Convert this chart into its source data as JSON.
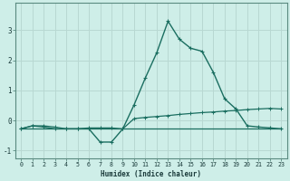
{
  "xlabel": "Humidex (Indice chaleur)",
  "background_color": "#ceeee8",
  "grid_color": "#b8d8d2",
  "line_color": "#1a6e60",
  "x_values": [
    0,
    1,
    2,
    3,
    4,
    5,
    6,
    7,
    8,
    9,
    10,
    11,
    12,
    13,
    14,
    15,
    16,
    17,
    18,
    19,
    20,
    21,
    22,
    23
  ],
  "line1_y": [
    -0.28,
    -0.18,
    -0.22,
    -0.28,
    -0.28,
    -0.28,
    -0.28,
    -0.72,
    -0.72,
    -0.28,
    0.52,
    1.42,
    2.25,
    3.3,
    2.7,
    2.4,
    2.3,
    1.6,
    0.72,
    0.38,
    -0.18,
    -0.22,
    -0.25,
    -0.28
  ],
  "line2_y": [
    -0.28,
    -0.18,
    -0.18,
    -0.22,
    -0.28,
    -0.28,
    -0.25,
    -0.25,
    -0.25,
    -0.28,
    0.06,
    0.1,
    0.13,
    0.16,
    0.2,
    0.23,
    0.26,
    0.28,
    0.31,
    0.33,
    0.36,
    0.38,
    0.4,
    0.38
  ],
  "line3_y": [
    -0.28,
    -0.28,
    -0.28,
    -0.28,
    -0.28,
    -0.28,
    -0.28,
    -0.28,
    -0.28,
    -0.28,
    -0.28,
    -0.28,
    -0.28,
    -0.28,
    -0.28,
    -0.28,
    -0.28,
    -0.28,
    -0.28,
    -0.28,
    -0.28,
    -0.28,
    -0.28,
    -0.28
  ],
  "ylim": [
    -1.25,
    3.9
  ],
  "xlim": [
    -0.5,
    23.5
  ],
  "yticks": [
    -1,
    0,
    1,
    2,
    3
  ],
  "xticks": [
    0,
    1,
    2,
    3,
    4,
    5,
    6,
    7,
    8,
    9,
    10,
    11,
    12,
    13,
    14,
    15,
    16,
    17,
    18,
    19,
    20,
    21,
    22,
    23
  ]
}
